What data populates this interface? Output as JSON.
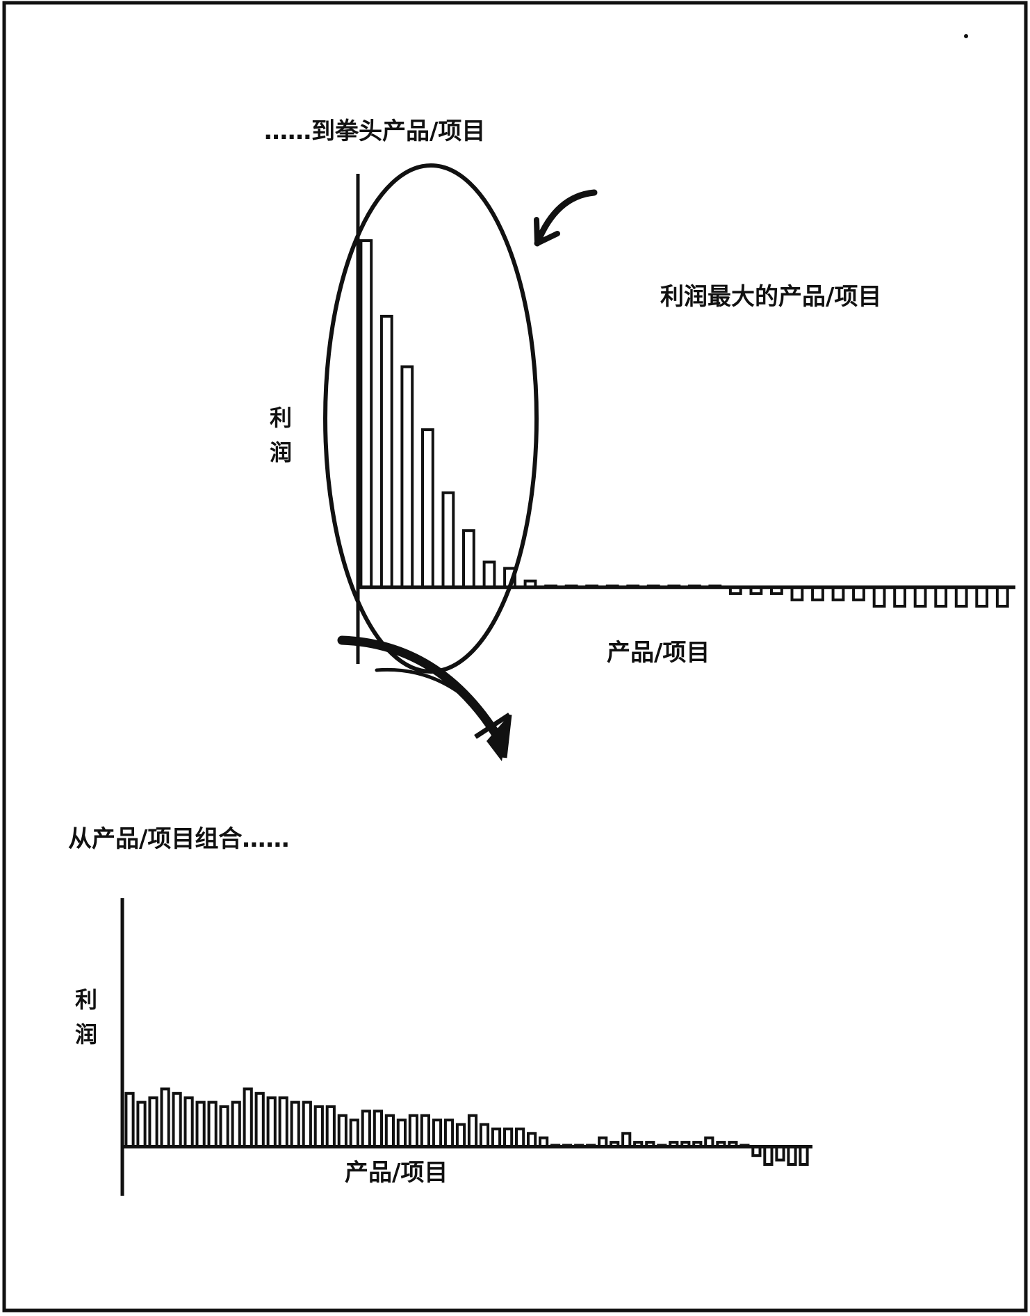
{
  "chart_data": [
    {
      "id": "portfolio",
      "type": "bar",
      "caption": "从产品/项目组合……",
      "ylabel": "利润",
      "xlabel": "产品/项目",
      "ylim": [
        -4,
        14
      ],
      "values": [
        12,
        10,
        11,
        13,
        12,
        11,
        10,
        10,
        9,
        10,
        13,
        12,
        11,
        11,
        10,
        10,
        9,
        9,
        7,
        6,
        8,
        8,
        7,
        6,
        7,
        7,
        6,
        6,
        5,
        7,
        5,
        4,
        4,
        4,
        3,
        2,
        0,
        0,
        0,
        0,
        2,
        1,
        3,
        1,
        1,
        0,
        1,
        1,
        1,
        2,
        1,
        1,
        0,
        -2,
        -4,
        -3,
        -4,
        -4
      ]
    },
    {
      "id": "winners",
      "type": "bar",
      "caption": "……到拳头产品/项目",
      "ylabel": "利润",
      "xlabel": "产品/项目",
      "annotation": "利润最大的产品/项目",
      "ylim": [
        -3,
        57
      ],
      "values": [
        55,
        43,
        35,
        25,
        15,
        9,
        4,
        3,
        1,
        0,
        0,
        0,
        0,
        0,
        0,
        0,
        0,
        0,
        -1,
        -1,
        -1,
        -2,
        -2,
        -2,
        -2,
        -3,
        -3,
        -3,
        -3,
        -3,
        -3,
        -3
      ]
    }
  ]
}
